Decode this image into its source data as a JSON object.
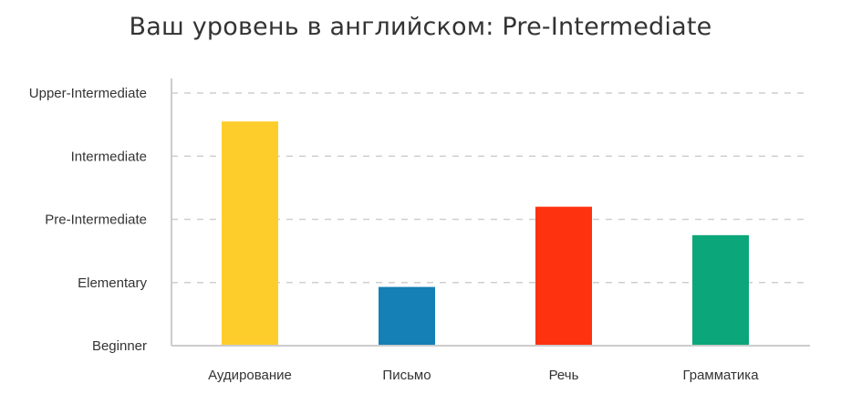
{
  "chart_data": {
    "type": "bar",
    "title": "Ваш уровень в английском: Pre-Intermediate",
    "categories": [
      "Аудирование",
      "Письмо",
      "Речь",
      "Грамматика"
    ],
    "y_tick_labels": [
      "Beginner",
      "Elementary",
      "Pre-Intermediate",
      "Intermediate",
      "Upper-Intermediate"
    ],
    "ylim": [
      0,
      4
    ],
    "values": [
      3.55,
      0.93,
      2.2,
      1.75
    ],
    "colors": [
      "#FDCE2B",
      "#1480B5",
      "#FF3210",
      "#0BA67A"
    ],
    "grid": "horizontal-dashed",
    "xlabel": "",
    "ylabel": ""
  }
}
